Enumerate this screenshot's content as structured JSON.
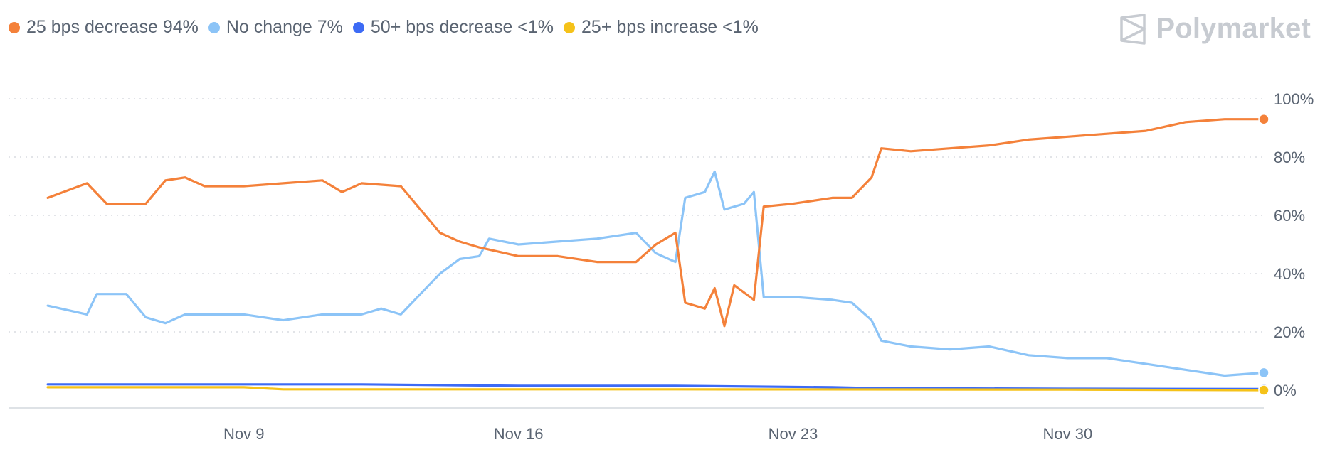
{
  "brand": {
    "name": "Polymarket",
    "icon": "polymarket-logo-icon",
    "color": "#c7cbd1"
  },
  "chart_data": {
    "type": "line",
    "title": "",
    "xlabel": "",
    "ylabel": "",
    "x_range": [
      "2024-11-03",
      "2024-12-05"
    ],
    "ylim": [
      0,
      100
    ],
    "y_ticks": [
      "0%",
      "20%",
      "40%",
      "60%",
      "80%",
      "100%"
    ],
    "x_ticks": [
      {
        "label": "Nov 9",
        "date": "2024-11-09"
      },
      {
        "label": "Nov 16",
        "date": "2024-11-16"
      },
      {
        "label": "Nov 23",
        "date": "2024-11-23"
      },
      {
        "label": "Nov 30",
        "date": "2024-11-30"
      }
    ],
    "grid": "horizontal dotted",
    "legend_position": "top-left",
    "series": [
      {
        "name": "25 bps decrease",
        "legend_value": "94%",
        "color": "#f4813a",
        "points": [
          [
            "2024-11-04",
            66
          ],
          [
            "2024-11-05",
            71
          ],
          [
            "2024-11-05 12:00",
            64
          ],
          [
            "2024-11-06 12:00",
            64
          ],
          [
            "2024-11-07",
            72
          ],
          [
            "2024-11-07 12:00",
            73
          ],
          [
            "2024-11-08",
            70
          ],
          [
            "2024-11-09",
            70
          ],
          [
            "2024-11-10",
            71
          ],
          [
            "2024-11-11",
            72
          ],
          [
            "2024-11-11 12:00",
            68
          ],
          [
            "2024-11-12",
            71
          ],
          [
            "2024-11-13",
            70
          ],
          [
            "2024-11-13 12:00",
            62
          ],
          [
            "2024-11-14",
            54
          ],
          [
            "2024-11-14 12:00",
            51
          ],
          [
            "2024-11-15",
            49
          ],
          [
            "2024-11-16",
            46
          ],
          [
            "2024-11-17",
            46
          ],
          [
            "2024-11-18",
            44
          ],
          [
            "2024-11-19",
            44
          ],
          [
            "2024-11-19 12:00",
            50
          ],
          [
            "2024-11-20",
            54
          ],
          [
            "2024-11-20 06:00",
            30
          ],
          [
            "2024-11-20 18:00",
            28
          ],
          [
            "2024-11-21",
            35
          ],
          [
            "2024-11-21 06:00",
            22
          ],
          [
            "2024-11-21 12:00",
            36
          ],
          [
            "2024-11-22",
            31
          ],
          [
            "2024-11-22 06:00",
            63
          ],
          [
            "2024-11-23",
            64
          ],
          [
            "2024-11-24",
            66
          ],
          [
            "2024-11-24 12:00",
            66
          ],
          [
            "2024-11-25",
            73
          ],
          [
            "2024-11-25 06:00",
            83
          ],
          [
            "2024-11-26",
            82
          ],
          [
            "2024-11-27",
            83
          ],
          [
            "2024-11-28",
            84
          ],
          [
            "2024-11-29",
            86
          ],
          [
            "2024-11-30",
            87
          ],
          [
            "2024-12-01",
            88
          ],
          [
            "2024-12-02",
            89
          ],
          [
            "2024-12-03",
            92
          ],
          [
            "2024-12-04",
            93
          ],
          [
            "2024-12-05",
            93
          ]
        ]
      },
      {
        "name": "No change",
        "legend_value": "7%",
        "color": "#8cc4f7",
        "points": [
          [
            "2024-11-04",
            29
          ],
          [
            "2024-11-05",
            26
          ],
          [
            "2024-11-05 06:00",
            33
          ],
          [
            "2024-11-06",
            33
          ],
          [
            "2024-11-06 12:00",
            25
          ],
          [
            "2024-11-07",
            23
          ],
          [
            "2024-11-07 12:00",
            26
          ],
          [
            "2024-11-08",
            26
          ],
          [
            "2024-11-09",
            26
          ],
          [
            "2024-11-10",
            24
          ],
          [
            "2024-11-11",
            26
          ],
          [
            "2024-11-12",
            26
          ],
          [
            "2024-11-12 12:00",
            28
          ],
          [
            "2024-11-13",
            26
          ],
          [
            "2024-11-13 12:00",
            33
          ],
          [
            "2024-11-14",
            40
          ],
          [
            "2024-11-14 12:00",
            45
          ],
          [
            "2024-11-15",
            46
          ],
          [
            "2024-11-15 06:00",
            52
          ],
          [
            "2024-11-16",
            50
          ],
          [
            "2024-11-17",
            51
          ],
          [
            "2024-11-18",
            52
          ],
          [
            "2024-11-19",
            54
          ],
          [
            "2024-11-19 12:00",
            47
          ],
          [
            "2024-11-20",
            44
          ],
          [
            "2024-11-20 06:00",
            66
          ],
          [
            "2024-11-20 18:00",
            68
          ],
          [
            "2024-11-21",
            75
          ],
          [
            "2024-11-21 06:00",
            62
          ],
          [
            "2024-11-21 18:00",
            64
          ],
          [
            "2024-11-22",
            68
          ],
          [
            "2024-11-22 06:00",
            32
          ],
          [
            "2024-11-23",
            32
          ],
          [
            "2024-11-24",
            31
          ],
          [
            "2024-11-24 12:00",
            30
          ],
          [
            "2024-11-25",
            24
          ],
          [
            "2024-11-25 06:00",
            17
          ],
          [
            "2024-11-26",
            15
          ],
          [
            "2024-11-27",
            14
          ],
          [
            "2024-11-28",
            15
          ],
          [
            "2024-11-29",
            12
          ],
          [
            "2024-11-30",
            11
          ],
          [
            "2024-12-01",
            11
          ],
          [
            "2024-12-02",
            9
          ],
          [
            "2024-12-03",
            7
          ],
          [
            "2024-12-04",
            5
          ],
          [
            "2024-12-05",
            6
          ]
        ]
      },
      {
        "name": "50+ bps decrease",
        "legend_value": "<1%",
        "color": "#3d6bf5",
        "points": [
          [
            "2024-11-04",
            2
          ],
          [
            "2024-11-05",
            2
          ],
          [
            "2024-11-08",
            2
          ],
          [
            "2024-11-12",
            2
          ],
          [
            "2024-11-16",
            1.5
          ],
          [
            "2024-11-20",
            1.5
          ],
          [
            "2024-11-24",
            1
          ],
          [
            "2024-11-25",
            0.7
          ],
          [
            "2024-11-30",
            0.5
          ],
          [
            "2024-12-05",
            0.4
          ]
        ]
      },
      {
        "name": "25+ bps increase",
        "legend_value": "<1%",
        "color": "#f5c219",
        "points": [
          [
            "2024-11-04",
            1
          ],
          [
            "2024-11-09",
            1
          ],
          [
            "2024-11-10",
            0.3
          ],
          [
            "2024-11-20",
            0.3
          ],
          [
            "2024-11-30",
            0.2
          ],
          [
            "2024-12-05",
            0
          ]
        ]
      }
    ]
  }
}
